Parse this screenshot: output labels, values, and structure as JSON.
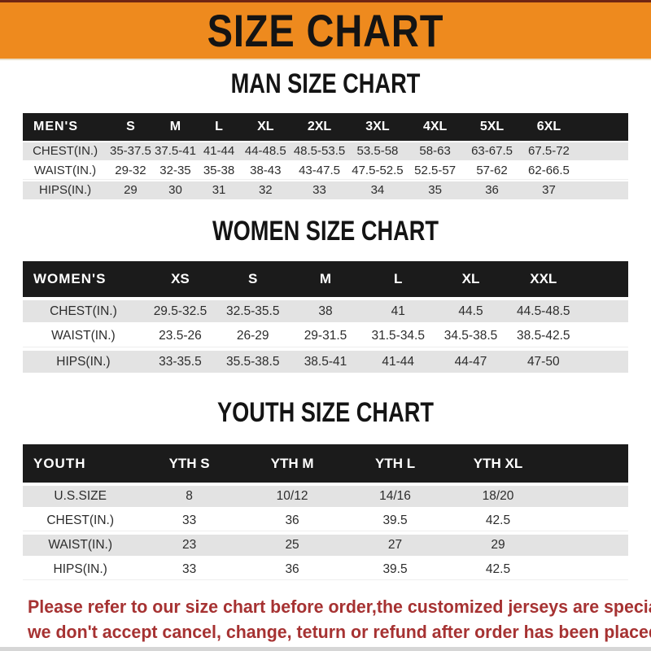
{
  "banner": {
    "title": "SIZE CHART"
  },
  "colors": {
    "banner_orange": "#ee8a1e",
    "banner_top_line": "#702613",
    "header_bar_black": "#1b1b1b",
    "row_shade_gray": "#e3e3e3",
    "disclaimer_red": "#a63232"
  },
  "sections": [
    {
      "heading": "MAN SIZE CHART",
      "table": {
        "label": "MEN'S",
        "columns": [
          "S",
          "M",
          "L",
          "XL",
          "2XL",
          "3XL",
          "4XL",
          "5XL",
          "6XL"
        ],
        "rows": [
          {
            "label": "CHEST(IN.)",
            "values": [
              "35-37.5",
              "37.5-41",
              "41-44",
              "44-48.5",
              "48.5-53.5",
              "53.5-58",
              "58-63",
              "63-67.5",
              "67.5-72"
            ]
          },
          {
            "label": "WAIST(IN.)",
            "values": [
              "29-32",
              "32-35",
              "35-38",
              "38-43",
              "43-47.5",
              "47.5-52.5",
              "52.5-57",
              "57-62",
              "62-66.5"
            ]
          },
          {
            "label": "HIPS(IN.)",
            "values": [
              "29",
              "30",
              "31",
              "32",
              "33",
              "34",
              "35",
              "36",
              "37"
            ]
          }
        ]
      }
    },
    {
      "heading": "WOMEN SIZE CHART",
      "table": {
        "label": "WOMEN'S",
        "columns": [
          "XS",
          "S",
          "M",
          "L",
          "XL",
          "XXL"
        ],
        "rows": [
          {
            "label": "CHEST(IN.)",
            "values": [
              "29.5-32.5",
              "32.5-35.5",
              "38",
              "41",
              "44.5",
              "44.5-48.5"
            ]
          },
          {
            "label": "WAIST(IN.)",
            "values": [
              "23.5-26",
              "26-29",
              "29-31.5",
              "31.5-34.5",
              "34.5-38.5",
              "38.5-42.5"
            ]
          },
          {
            "label": "HIPS(IN.)",
            "values": [
              "33-35.5",
              "35.5-38.5",
              "38.5-41",
              "41-44",
              "44-47",
              "47-50"
            ]
          }
        ]
      }
    },
    {
      "heading": "YOUTH SIZE CHART",
      "table": {
        "label": "YOUTH",
        "columns": [
          "YTH S",
          "YTH M",
          "YTH L",
          "YTH XL"
        ],
        "rows": [
          {
            "label": "U.S.SIZE",
            "values": [
              "8",
              "10/12",
              "14/16",
              "18/20"
            ]
          },
          {
            "label": "CHEST(IN.)",
            "values": [
              "33",
              "36",
              "39.5",
              "42.5"
            ]
          },
          {
            "label": "WAIST(IN.)",
            "values": [
              "23",
              "25",
              "27",
              "29"
            ]
          },
          {
            "label": "HIPS(IN.)",
            "values": [
              "33",
              "36",
              "39.5",
              "42.5"
            ]
          }
        ]
      }
    }
  ],
  "disclaimer": {
    "line1": "Please refer to our size chart before order,the customized jerseys are special products,",
    "line2": "we don't accept cancel, change, teturn or refund after order has been placed!"
  }
}
